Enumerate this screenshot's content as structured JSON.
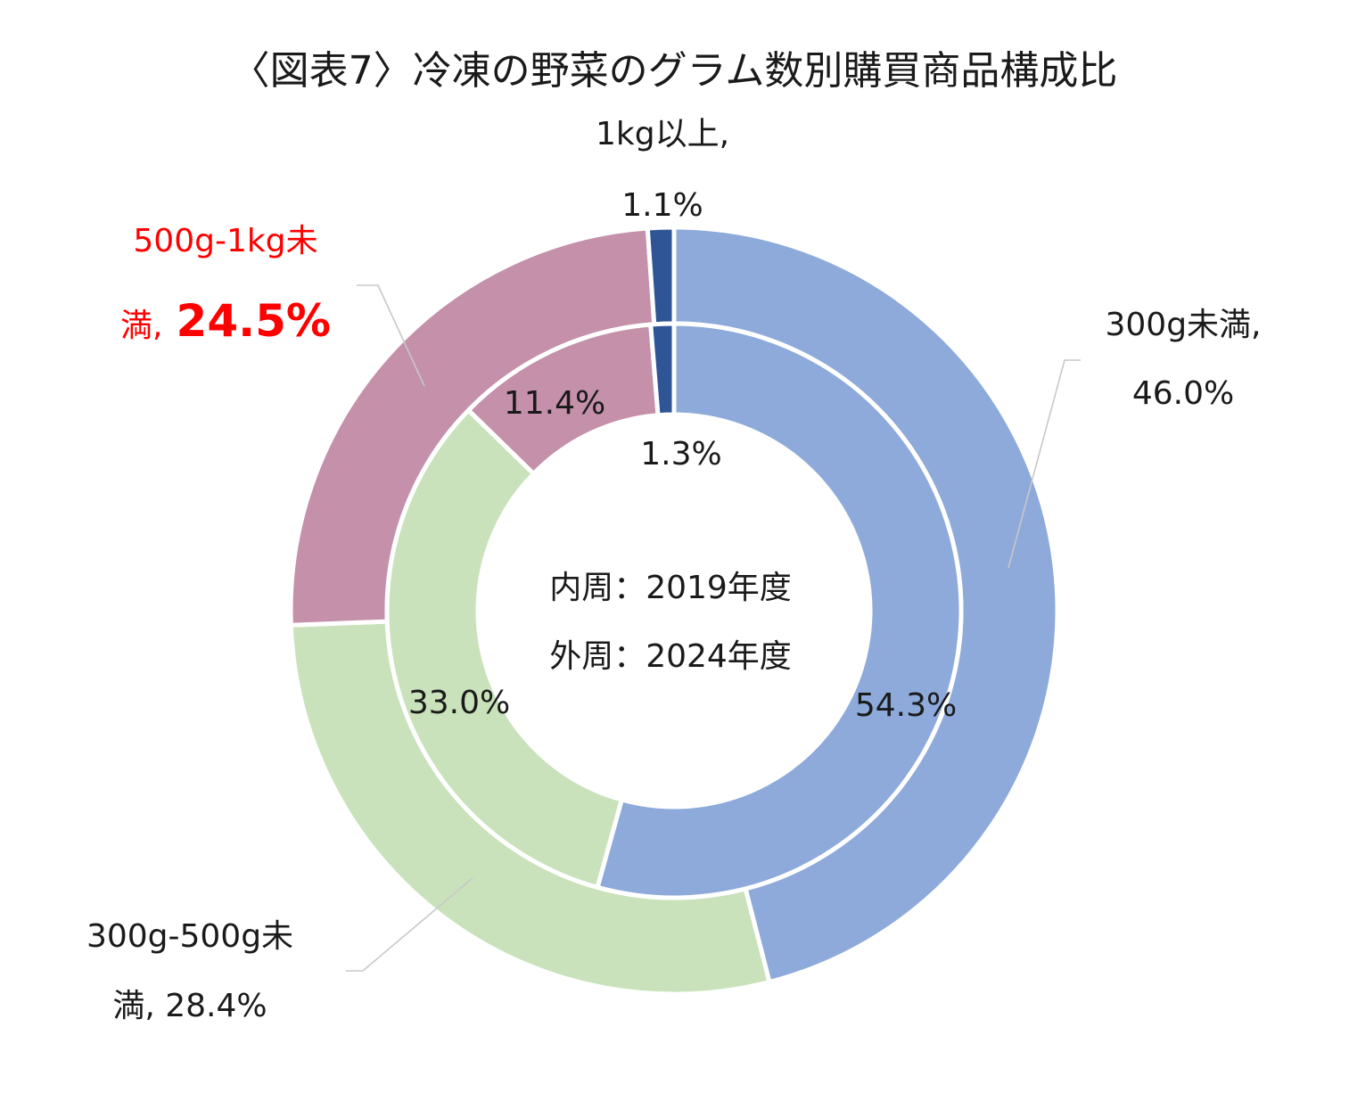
{
  "chart_data": {
    "type": "doughnut",
    "title": "〈図表7〉冷凍の野菜のグラム数別購買商品構成比",
    "categories": [
      "300g未満",
      "300g-500g未満",
      "500g-1kg未満",
      "1kg以上"
    ],
    "colors": [
      "#8eaadb",
      "#c9e2bb",
      "#c490aa",
      "#2f5597"
    ],
    "series": [
      {
        "name": "2019年度",
        "ring": "inner",
        "values": [
          54.3,
          33.0,
          11.4,
          1.3
        ],
        "labels": [
          "54.3%",
          "33.0%",
          "11.4%",
          "1.3%"
        ]
      },
      {
        "name": "2024年度",
        "ring": "outer",
        "values": [
          46.0,
          28.4,
          24.5,
          1.1
        ],
        "labels": [
          "46.0%",
          "28.4%",
          "24.5%",
          "1.1%"
        ]
      }
    ],
    "center_text": [
      "内周：2019年度",
      "外周：2024年度"
    ],
    "outer_labels": {
      "cat0": [
        "300g未満,",
        "46.0%"
      ],
      "cat1": [
        "300g-500g未",
        "満, 28.4%"
      ],
      "cat2_line1": "500g-1kg未",
      "cat2_line2_prefix": "満,",
      "cat2_line2_value": "24.5%",
      "cat3": [
        "1kg以上,",
        "1.1%"
      ]
    },
    "highlight_color": "#ff0000"
  }
}
